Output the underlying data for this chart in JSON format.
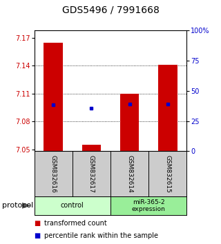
{
  "title": "GDS5496 / 7991668",
  "samples": [
    "GSM832616",
    "GSM832617",
    "GSM832614",
    "GSM832615"
  ],
  "red_values": [
    7.165,
    7.055,
    7.11,
    7.141
  ],
  "blue_values": [
    7.098,
    7.094,
    7.099,
    7.099
  ],
  "y_min": 7.048,
  "y_max": 7.178,
  "y_ticks_left": [
    7.05,
    7.08,
    7.11,
    7.14,
    7.17
  ],
  "y_ticks_right": [
    0,
    25,
    50,
    75,
    100
  ],
  "bar_base": 7.048,
  "red_color": "#cc0000",
  "blue_color": "#0000cc",
  "bar_width": 0.5,
  "legend_red": "transformed count",
  "legend_blue": "percentile rank within the sample",
  "control_color": "#ccffcc",
  "mir_color": "#99ee99",
  "label_bg": "#cccccc",
  "title_fontsize": 10,
  "tick_fontsize": 7,
  "sample_fontsize": 6.5,
  "group_fontsize": 7,
  "legend_fontsize": 7
}
